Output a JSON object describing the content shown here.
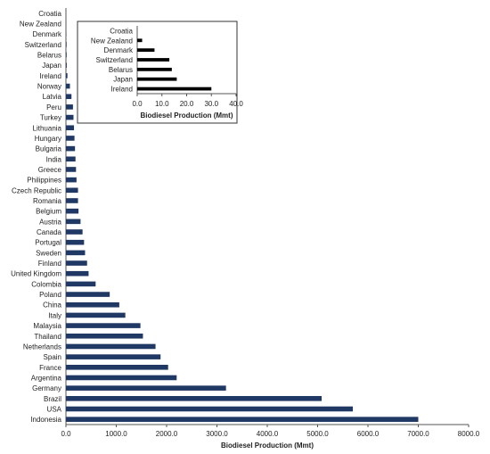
{
  "chart_data": [
    {
      "type": "bar",
      "orientation": "horizontal",
      "categories": [
        "Indonesia",
        "USA",
        "Brazil",
        "Germany",
        "Argentina",
        "France",
        "Spain",
        "Netherlands",
        "Thailand",
        "Malaysia",
        "Italy",
        "China",
        "Poland",
        "Colombia",
        "United Kingdom",
        "Finland",
        "Sweden",
        "Portugal",
        "Canada",
        "Austria",
        "Belgium",
        "Romania",
        "Czech Republic",
        "Philippines",
        "Greece",
        "India",
        "Bulgaria",
        "Hungary",
        "Lithuania",
        "Turkey",
        "Peru",
        "Latvia",
        "Norway",
        "Ireland",
        "Japan",
        "Belarus",
        "Switzerland",
        "Denmark",
        "New Zealand",
        "Croatia"
      ],
      "values": [
        7000,
        5700,
        5080,
        3180,
        2200,
        2030,
        1880,
        1780,
        1530,
        1480,
        1180,
        1060,
        870,
        590,
        450,
        420,
        380,
        360,
        330,
        290,
        250,
        240,
        240,
        210,
        200,
        190,
        180,
        170,
        160,
        150,
        140,
        110,
        80,
        30,
        16,
        14,
        13,
        7,
        2,
        0
      ],
      "xlabel": "Biodiesel Production  (Mmt)",
      "xlim": [
        0,
        8000
      ],
      "xticks": [
        "0.0",
        "1000.0",
        "2000.0",
        "3000.0",
        "4000.0",
        "5000.0",
        "6000.0",
        "7000.0",
        "8000.0"
      ],
      "bar_color": "#203864"
    },
    {
      "type": "bar",
      "orientation": "horizontal",
      "categories": [
        "Ireland",
        "Japan",
        "Belarus",
        "Switzerland",
        "Denmark",
        "New Zealand",
        "Croatia"
      ],
      "values": [
        30,
        16,
        14,
        13,
        7,
        2,
        0
      ],
      "xlabel": "Biodiesel Production (Mmt)",
      "xlim": [
        0,
        40
      ],
      "xticks": [
        "0.0",
        "10.0",
        "20.0",
        "30.0",
        "40.0"
      ],
      "bar_color": "#000000"
    }
  ]
}
